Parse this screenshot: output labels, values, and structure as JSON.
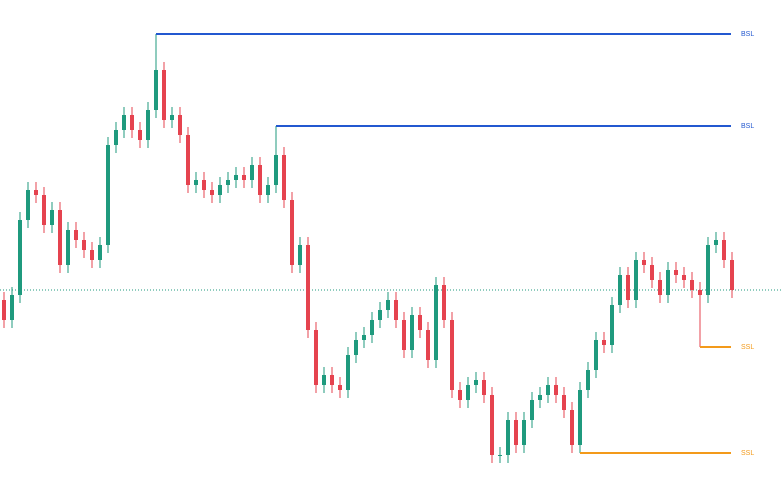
{
  "chart_data": {
    "type": "candlestick",
    "up_color": "#1f9a7e",
    "down_color": "#e5434f",
    "ylim": [
      0,
      491
    ],
    "open": [
      191,
      171,
      196,
      271,
      301,
      296,
      266,
      281,
      226,
      261,
      251,
      241,
      231,
      246,
      346,
      361,
      376,
      361,
      351,
      381,
      421,
      371,
      376,
      356,
      306,
      311,
      301,
      296,
      306,
      311,
      316,
      311,
      326,
      296,
      306,
      336,
      291,
      226,
      246,
      161,
      106,
      116,
      106,
      101,
      136,
      151,
      156,
      171,
      181,
      191,
      171,
      141,
      176,
      161,
      131,
      206,
      171,
      101,
      91,
      106,
      111,
      96,
      36,
      36,
      71,
      46,
      71,
      91,
      96,
      106,
      96,
      81,
      46,
      101,
      121,
      151,
      146,
      186,
      216,
      191,
      231,
      226,
      211,
      196,
      221,
      216,
      211,
      201,
      196,
      246,
      251,
      231
    ],
    "high": [
      199,
      204,
      279,
      309,
      309,
      304,
      289,
      289,
      269,
      269,
      259,
      249,
      254,
      354,
      369,
      384,
      384,
      369,
      389,
      457,
      429,
      384,
      384,
      364,
      319,
      319,
      309,
      314,
      319,
      324,
      324,
      334,
      334,
      314,
      365,
      344,
      299,
      254,
      254,
      169,
      124,
      124,
      114,
      144,
      159,
      164,
      179,
      189,
      199,
      199,
      179,
      184,
      184,
      169,
      214,
      214,
      179,
      109,
      114,
      119,
      119,
      104,
      44,
      79,
      79,
      79,
      99,
      104,
      114,
      114,
      104,
      89,
      109,
      129,
      159,
      159,
      194,
      224,
      224,
      239,
      239,
      234,
      219,
      229,
      229,
      224,
      219,
      209,
      254,
      259,
      259,
      239
    ],
    "low": [
      163,
      163,
      188,
      263,
      288,
      258,
      258,
      218,
      218,
      243,
      233,
      223,
      223,
      238,
      338,
      353,
      353,
      343,
      343,
      373,
      363,
      363,
      348,
      298,
      298,
      293,
      288,
      288,
      298,
      303,
      303,
      303,
      288,
      288,
      298,
      283,
      218,
      218,
      153,
      98,
      98,
      98,
      93,
      93,
      128,
      143,
      148,
      163,
      173,
      163,
      133,
      133,
      153,
      123,
      123,
      163,
      93,
      83,
      83,
      98,
      88,
      28,
      28,
      28,
      38,
      38,
      63,
      83,
      88,
      88,
      73,
      38,
      38,
      93,
      113,
      138,
      138,
      178,
      183,
      183,
      218,
      203,
      188,
      188,
      208,
      203,
      193,
      144,
      188,
      238,
      223,
      193
    ],
    "close": [
      171,
      196,
      271,
      301,
      296,
      266,
      281,
      226,
      261,
      251,
      241,
      231,
      246,
      346,
      361,
      376,
      361,
      351,
      381,
      421,
      371,
      376,
      356,
      306,
      311,
      301,
      296,
      306,
      311,
      316,
      311,
      326,
      296,
      306,
      336,
      291,
      226,
      246,
      161,
      106,
      116,
      106,
      101,
      136,
      151,
      156,
      171,
      181,
      191,
      171,
      141,
      176,
      161,
      131,
      206,
      171,
      101,
      91,
      106,
      111,
      96,
      36,
      36,
      71,
      46,
      71,
      91,
      96,
      106,
      96,
      81,
      46,
      101,
      121,
      151,
      146,
      186,
      216,
      191,
      231,
      226,
      211,
      196,
      221,
      216,
      211,
      201,
      196,
      246,
      251,
      231,
      201
    ],
    "levels": [
      {
        "label": "BSL",
        "value": 457,
        "color": "#2358d0",
        "source": "high"
      },
      {
        "label": "BSL",
        "value": 365,
        "color": "#2358d0",
        "source": "high"
      },
      {
        "label": "SSL",
        "value": 144,
        "color": "#f39a1a",
        "source": "low"
      },
      {
        "label": "SSL",
        "value": 38,
        "color": "#f39a1a",
        "source": "low"
      }
    ],
    "last_price_color": "#1f9a7e"
  }
}
